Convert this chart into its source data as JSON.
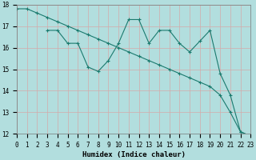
{
  "title": "",
  "xlabel": "Humidex (Indice chaleur)",
  "bg_color": "#b2dede",
  "grid_color": "#d4aaaa",
  "line_color": "#1a7a6e",
  "line1_x": [
    0,
    1,
    2,
    3,
    4,
    5,
    6,
    7,
    8,
    9,
    10,
    11,
    12,
    13,
    14,
    15,
    16,
    17,
    18,
    19,
    20,
    21,
    22,
    23
  ],
  "line1_y": [
    17.8,
    17.8,
    17.6,
    17.4,
    17.2,
    17.0,
    16.8,
    16.6,
    16.4,
    16.2,
    16.0,
    15.8,
    15.6,
    15.4,
    15.2,
    15.0,
    14.8,
    14.6,
    14.4,
    14.2,
    13.8,
    13.0,
    12.1,
    11.9
  ],
  "line2_x": [
    3,
    4,
    5,
    6,
    7,
    8,
    9,
    10,
    11,
    12,
    13,
    14,
    15,
    16,
    17,
    18,
    19,
    20,
    21,
    22,
    23
  ],
  "line2_y": [
    16.8,
    16.8,
    16.2,
    16.2,
    15.1,
    14.9,
    15.4,
    16.2,
    17.3,
    17.3,
    16.2,
    16.8,
    16.8,
    16.2,
    15.8,
    16.3,
    16.8,
    14.8,
    13.8,
    12.1,
    11.9
  ],
  "ylim": [
    12,
    18
  ],
  "xlim": [
    0,
    23
  ],
  "yticks": [
    12,
    13,
    14,
    15,
    16,
    17,
    18
  ],
  "xtick_labels": [
    "0",
    "1",
    "2",
    "3",
    "4",
    "5",
    "6",
    "7",
    "8",
    "9",
    "10",
    "11",
    "12",
    "13",
    "14",
    "15",
    "16",
    "17",
    "18",
    "19",
    "20",
    "21",
    "22",
    "23"
  ],
  "tick_fontsize": 5.5,
  "xlabel_fontsize": 6.5,
  "marker_size": 2.5,
  "line_width": 0.8
}
